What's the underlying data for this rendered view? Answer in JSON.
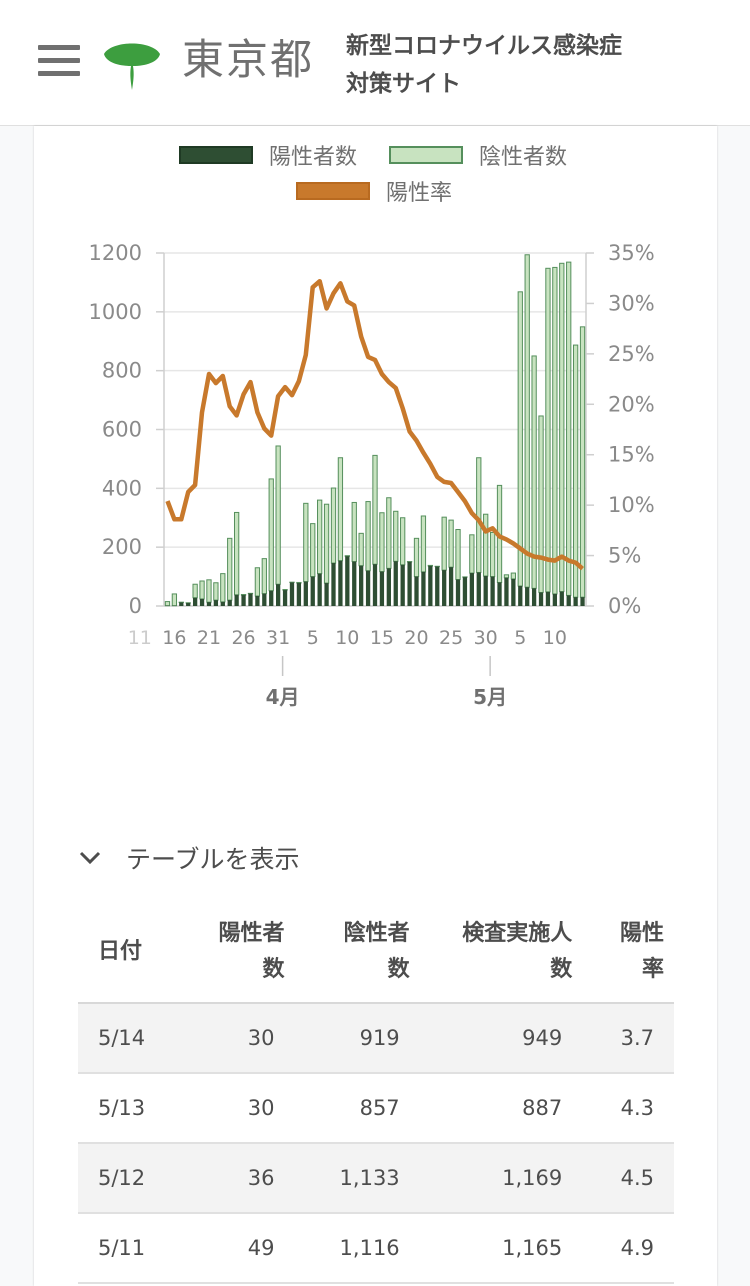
{
  "header": {
    "logo_text": "東京都",
    "title_line1": "新型コロナウイルス感染症",
    "title_line2": "対策サイト"
  },
  "legend": {
    "positive": "陽性者数",
    "negative": "陰性者数",
    "rate": "陽性率"
  },
  "colors": {
    "positive_bar": "#2e4e33",
    "negative_bar": "#c8e3c0",
    "negative_bar_border": "#558f5c",
    "rate_line": "#c8792c",
    "brand_green": "#3d9e3f"
  },
  "chart_data": {
    "type": "bar",
    "combo": "stacked bars with line on secondary axis",
    "x": [
      "3/15",
      "3/16",
      "3/17",
      "3/18",
      "3/19",
      "3/20",
      "3/21",
      "3/22",
      "3/23",
      "3/24",
      "3/25",
      "3/26",
      "3/27",
      "3/28",
      "3/29",
      "3/30",
      "3/31",
      "4/1",
      "4/2",
      "4/3",
      "4/4",
      "4/5",
      "4/6",
      "4/7",
      "4/8",
      "4/9",
      "4/10",
      "4/11",
      "4/12",
      "4/13",
      "4/14",
      "4/15",
      "4/16",
      "4/17",
      "4/18",
      "4/19",
      "4/20",
      "4/21",
      "4/22",
      "4/23",
      "4/24",
      "4/25",
      "4/26",
      "4/27",
      "4/28",
      "4/29",
      "4/30",
      "5/1",
      "5/2",
      "5/3",
      "5/4",
      "5/5",
      "5/6",
      "5/7",
      "5/8",
      "5/9",
      "5/10",
      "5/11",
      "5/12",
      "5/13",
      "5/14"
    ],
    "x_tick_labels": [
      "11",
      "16",
      "21",
      "26",
      "31",
      "5",
      "10",
      "15",
      "20",
      "25",
      "30",
      "5",
      "10"
    ],
    "month_labels": [
      "4月",
      "5月"
    ],
    "series": [
      {
        "name": "陽性者数",
        "values": [
          1,
          1,
          12,
          10,
          28,
          24,
          13,
          20,
          14,
          20,
          38,
          37,
          42,
          34,
          42,
          52,
          74,
          54,
          80,
          78,
          83,
          100,
          110,
          78,
          146,
          154,
          169,
          151,
          137,
          120,
          142,
          117,
          128,
          152,
          140,
          150,
          100,
          116,
          136,
          134,
          122,
          132,
          90,
          98,
          112,
          114,
          102,
          100,
          80,
          96,
          92,
          68,
          64,
          60,
          46,
          48,
          41,
          49,
          36,
          30,
          30
        ]
      },
      {
        "name": "陰性者数",
        "values": [
          14,
          40,
          1,
          1,
          46,
          61,
          76,
          59,
          96,
          210,
          280,
          2,
          1,
          96,
          119,
          380,
          470,
          2,
          1,
          2,
          266,
          180,
          250,
          268,
          255,
          350,
          2,
          201,
          110,
          235,
          370,
          200,
          240,
          170,
          160,
          1,
          130,
          190,
          2,
          1,
          180,
          160,
          170,
          1,
          130,
          390,
          210,
          150,
          330,
          10,
          20,
          1000,
          1130,
          790,
          600,
          1100,
          1110,
          1116,
          1133,
          857,
          919
        ]
      },
      {
        "name": "陽性率",
        "axis": "right",
        "unit": "%",
        "values": [
          10.4,
          8.6,
          8.6,
          11.3,
          12.0,
          19.2,
          23.0,
          22.1,
          22.8,
          19.8,
          18.9,
          21.0,
          22.2,
          19.2,
          17.6,
          16.9,
          20.8,
          21.7,
          20.9,
          22.3,
          24.9,
          31.6,
          32.2,
          29.5,
          31.0,
          32.0,
          30.2,
          29.8,
          26.7,
          24.7,
          24.4,
          23.0,
          22.2,
          21.6,
          19.6,
          17.3,
          16.4,
          15.2,
          14.1,
          12.8,
          12.3,
          12.2,
          11.3,
          10.4,
          9.2,
          8.5,
          7.4,
          7.7,
          6.9,
          6.6,
          6.2,
          5.7,
          5.2,
          4.9,
          4.8,
          4.6,
          4.5,
          4.9,
          4.5,
          4.3,
          3.7
        ]
      }
    ],
    "left_axis": {
      "ylim": [
        0,
        1200
      ],
      "ticks": [
        "0",
        "200",
        "400",
        "600",
        "800",
        "1000",
        "1200"
      ]
    },
    "right_axis": {
      "ylim": [
        0,
        35
      ],
      "ticks": [
        "0%",
        "5%",
        "10%",
        "15%",
        "20%",
        "25%",
        "30%",
        "35%"
      ]
    },
    "legend_position": "top",
    "grid": true
  },
  "table": {
    "toggle_label": "テーブルを表示",
    "headers": [
      {
        "l1": "日付",
        "l2": ""
      },
      {
        "l1": "陽性者",
        "l2": "数"
      },
      {
        "l1": "陰性者",
        "l2": "数"
      },
      {
        "l1": "検査実施人",
        "l2": "数"
      },
      {
        "l1": "陽性",
        "l2": "率"
      }
    ],
    "rows": [
      [
        "5/14",
        "30",
        "919",
        "949",
        "3.7"
      ],
      [
        "5/13",
        "30",
        "857",
        "887",
        "4.3"
      ],
      [
        "5/12",
        "36",
        "1,133",
        "1,169",
        "4.5"
      ],
      [
        "5/11",
        "49",
        "1,116",
        "1,165",
        "4.9"
      ]
    ]
  }
}
